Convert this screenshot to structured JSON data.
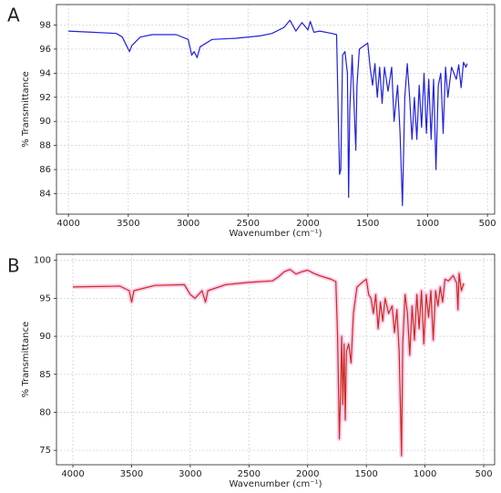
{
  "chart_data": [
    {
      "type": "line",
      "label": "A",
      "x_label": "Wavenumber (cm⁻¹)",
      "y_label": "% Transmittance",
      "color": "#2121dd",
      "grid": true,
      "xlim": [
        4100,
        440
      ],
      "ylim": [
        82.3,
        99.7
      ],
      "xticks": [
        4000,
        3500,
        3000,
        2500,
        2000,
        1500,
        1000,
        500
      ],
      "yticks": [
        84,
        86,
        88,
        90,
        92,
        94,
        96,
        98
      ],
      "x": [
        4000,
        3800,
        3600,
        3550,
        3510,
        3490,
        3470,
        3400,
        3300,
        3100,
        3000,
        2970,
        2950,
        2925,
        2900,
        2850,
        2800,
        2600,
        2400,
        2300,
        2200,
        2150,
        2100,
        2050,
        2000,
        1980,
        1950,
        1900,
        1800,
        1760,
        1745,
        1735,
        1725,
        1710,
        1690,
        1670,
        1660,
        1650,
        1630,
        1600,
        1590,
        1570,
        1500,
        1480,
        1460,
        1440,
        1420,
        1400,
        1380,
        1360,
        1330,
        1300,
        1280,
        1250,
        1230,
        1210,
        1190,
        1170,
        1150,
        1130,
        1110,
        1090,
        1070,
        1050,
        1030,
        1010,
        990,
        970,
        950,
        930,
        910,
        890,
        870,
        850,
        830,
        800,
        760,
        740,
        720,
        700,
        680,
        670
      ],
      "values": [
        97.5,
        97.4,
        97.3,
        97.0,
        96.2,
        95.8,
        96.3,
        97.0,
        97.2,
        97.2,
        96.8,
        95.5,
        95.8,
        95.3,
        96.2,
        96.5,
        96.8,
        96.9,
        97.1,
        97.3,
        97.8,
        98.4,
        97.5,
        98.2,
        97.6,
        98.3,
        97.4,
        97.5,
        97.3,
        97.2,
        90,
        85.6,
        86,
        95.5,
        95.8,
        94,
        83.7,
        91,
        95.5,
        87.6,
        93,
        96,
        96.5,
        94.5,
        93,
        94.8,
        92,
        94.5,
        91.5,
        94.5,
        92.5,
        94.5,
        90,
        93,
        89,
        83,
        92,
        94.8,
        92,
        88.5,
        92,
        88.5,
        93,
        89.5,
        94,
        89,
        93.5,
        88.5,
        93.5,
        86,
        93,
        94,
        89,
        94.5,
        92,
        94.5,
        93.5,
        94.7,
        92.8,
        94.9,
        94.5,
        94.8
      ]
    },
    {
      "type": "line",
      "label": "B",
      "x_label": "Wavenumber (cm⁻¹)",
      "y_label": "% Transmittance",
      "color": "#cc2a1a",
      "highlight_color": "#f7c3e8",
      "grid": true,
      "xlim": [
        4140,
        407
      ],
      "ylim": [
        73.1,
        100.8
      ],
      "xticks": [
        4000,
        3500,
        3000,
        2500,
        2000,
        1500,
        1000,
        500
      ],
      "yticks": [
        75,
        80,
        85,
        90,
        95,
        100
      ],
      "x": [
        4000,
        3600,
        3520,
        3500,
        3480,
        3300,
        3050,
        3000,
        2960,
        2930,
        2900,
        2870,
        2850,
        2700,
        2500,
        2300,
        2250,
        2200,
        2150,
        2100,
        2050,
        2000,
        1950,
        1900,
        1800,
        1760,
        1745,
        1730,
        1720,
        1710,
        1700,
        1690,
        1680,
        1670,
        1650,
        1630,
        1610,
        1580,
        1520,
        1500,
        1480,
        1460,
        1440,
        1420,
        1400,
        1380,
        1360,
        1340,
        1310,
        1280,
        1260,
        1240,
        1220,
        1200,
        1190,
        1170,
        1150,
        1130,
        1110,
        1090,
        1070,
        1050,
        1030,
        1010,
        990,
        970,
        950,
        930,
        910,
        890,
        870,
        850,
        830,
        800,
        760,
        730,
        720,
        710,
        690,
        670
      ],
      "values": [
        96.5,
        96.6,
        96,
        94.5,
        96,
        96.7,
        96.8,
        95.5,
        95,
        95.5,
        96,
        94.5,
        96,
        96.8,
        97.1,
        97.3,
        97.8,
        98.5,
        98.8,
        98.2,
        98.5,
        98.7,
        98.3,
        98,
        97.5,
        97.2,
        90,
        76.5,
        82,
        90,
        81,
        89,
        79,
        88,
        89,
        86.5,
        93,
        96.5,
        97.3,
        97.5,
        95.5,
        95,
        93,
        95.5,
        91,
        94.5,
        92,
        95,
        93,
        94,
        90.5,
        93.5,
        88,
        74.3,
        89,
        95.5,
        93,
        87.5,
        94,
        89.5,
        95.5,
        91,
        96,
        89,
        95.5,
        92.5,
        96,
        89.5,
        96,
        94,
        96.5,
        94.5,
        97.5,
        97.3,
        98,
        97,
        93.5,
        98.3,
        96,
        97
      ]
    }
  ]
}
